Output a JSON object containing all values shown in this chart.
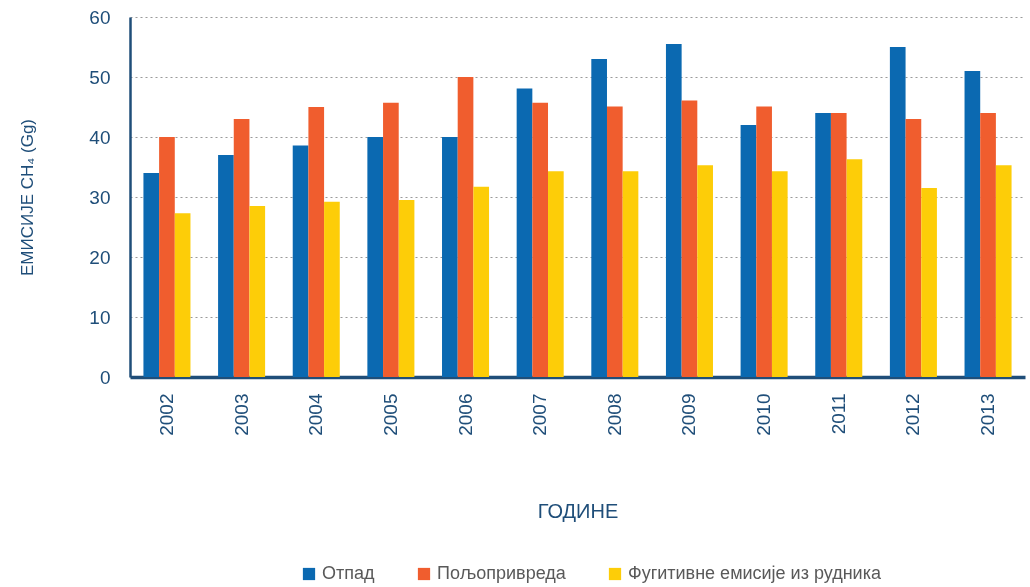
{
  "chart_data": {
    "type": "bar",
    "xlabel": "ГОДИНЕ",
    "ylabel": "ЕМИСИЈЕ CH₄ (Gg)",
    "categories": [
      "2002",
      "2003",
      "2004",
      "2005",
      "2006",
      "2007",
      "2008",
      "2009",
      "2010",
      "2011",
      "2012",
      "2013"
    ],
    "series": [
      {
        "name": "Отпад",
        "color": "#0b69b1",
        "values": [
          34,
          37,
          38.6,
          40,
          40,
          48.1,
          53,
          55.5,
          42,
          44,
          55,
          51
        ]
      },
      {
        "name": "Пољопривреда",
        "color": "#f05d2e",
        "values": [
          40,
          43,
          45,
          45.7,
          50,
          45.7,
          45.1,
          46.1,
          45.1,
          44,
          43,
          44
        ]
      },
      {
        "name": "Фугитивне емисије из рудника",
        "color": "#fdcd08",
        "values": [
          27.3,
          28.5,
          29.2,
          29.5,
          31.7,
          34.3,
          34.3,
          35.3,
          34.3,
          36.3,
          31.5,
          35.3
        ]
      }
    ],
    "ylim": [
      0,
      60
    ],
    "yticks": [
      0,
      10,
      20,
      30,
      40,
      50,
      60
    ],
    "grid": "y",
    "legend": "bottom"
  }
}
